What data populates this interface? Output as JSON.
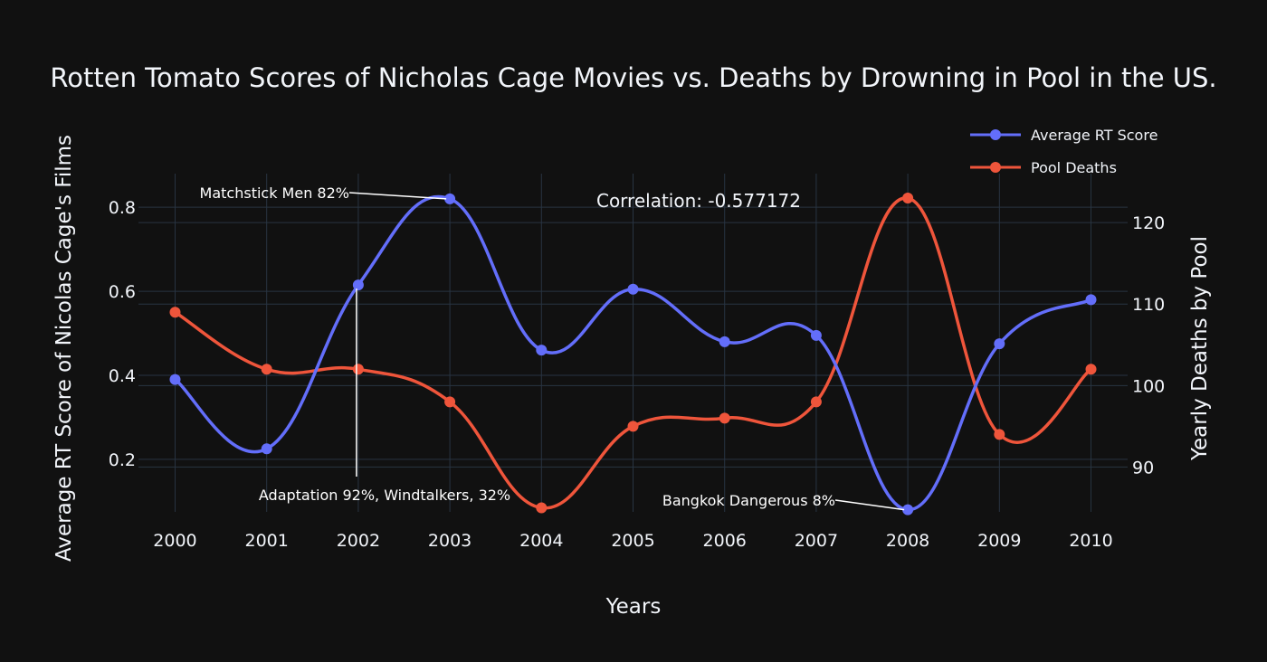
{
  "chart_data": {
    "type": "line",
    "title": "Rotten Tomato Scores of Nicholas Cage Movies vs. Deaths by Drowning in Pool in the US.",
    "xlabel": "Years",
    "ylabel": "Average RT Score of Nicolas Cage's Films",
    "y2label": "Yearly Deaths by Pool",
    "x": [
      "2000",
      "2001",
      "2002",
      "2003",
      "2004",
      "2005",
      "2006",
      "2007",
      "2008",
      "2009",
      "2010"
    ],
    "xlim": [
      1999.6,
      2010.4
    ],
    "ylim": [
      0.075,
      0.88
    ],
    "y2lim": [
      84.5,
      126
    ],
    "yticks": [
      0.2,
      0.4,
      0.6,
      0.8
    ],
    "y2ticks": [
      90,
      100,
      110,
      120
    ],
    "grid": true,
    "legend_position": "top-right",
    "series": [
      {
        "name": "Average RT Score",
        "axis": "left",
        "color": "#636efa",
        "values": [
          0.39,
          0.225,
          0.615,
          0.82,
          0.46,
          0.605,
          0.48,
          0.495,
          0.08,
          0.475,
          0.58
        ]
      },
      {
        "name": "Pool Deaths",
        "axis": "right",
        "color": "#ef553b",
        "values": [
          109,
          102,
          102,
          98,
          85,
          95,
          96,
          98,
          123,
          94,
          102
        ]
      }
    ],
    "annotations": [
      {
        "text": "Correlation: -0.577172",
        "type": "label"
      },
      {
        "text": "Matchstick Men 82%",
        "x": "2003",
        "y": 0.82
      },
      {
        "text": "Adaptation 92%, Windtalkers, 32%",
        "x": "2002",
        "y": 0.615
      },
      {
        "text": "Bangkok Dangerous 8%",
        "x": "2008",
        "y": 0.08
      }
    ]
  }
}
